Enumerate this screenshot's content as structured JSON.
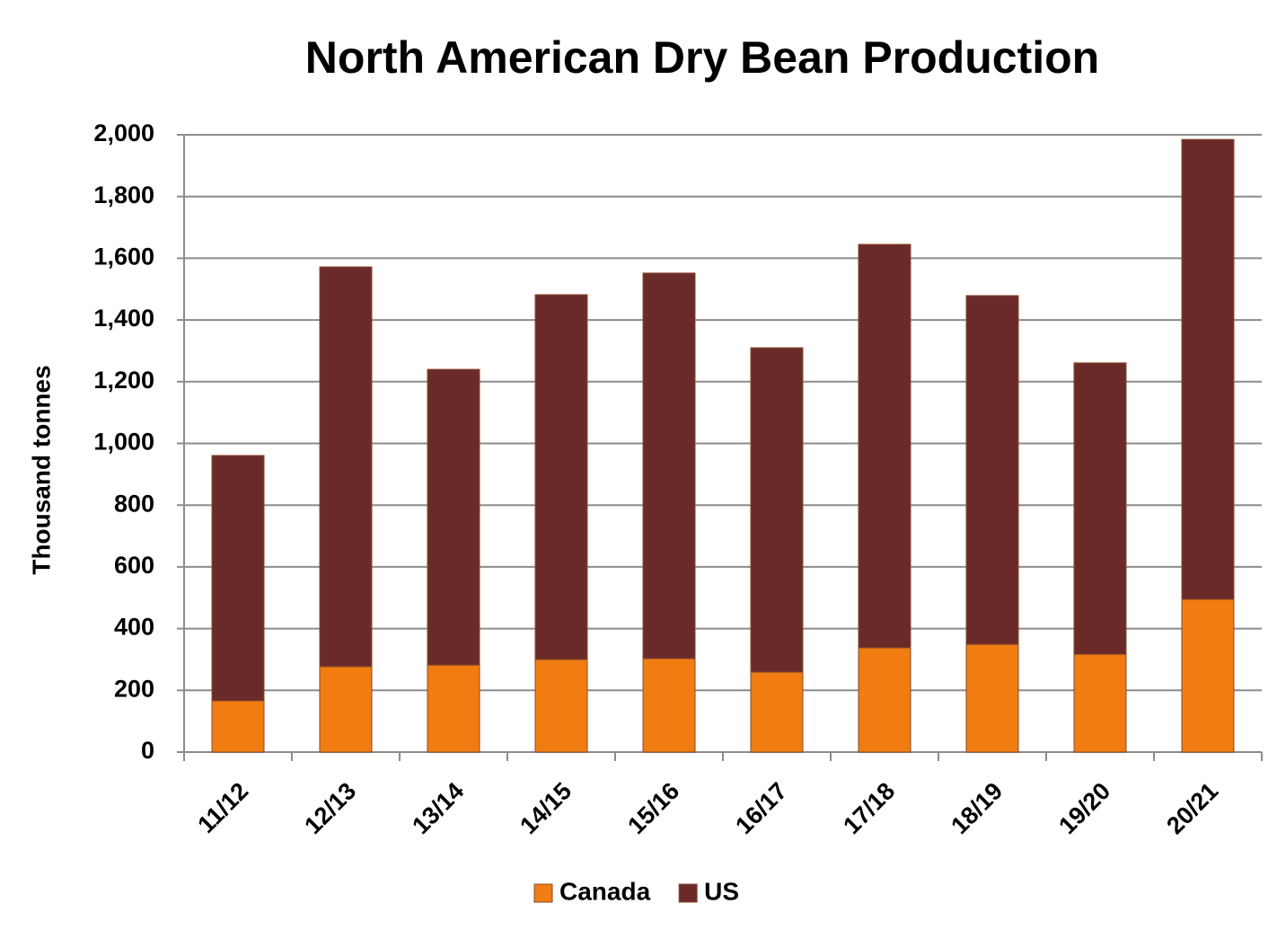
{
  "chart_data": {
    "type": "stacked_bar",
    "title": "North American Dry Bean Production",
    "y_label": "Thousand tonnes",
    "categories": [
      "11/12",
      "12/13",
      "13/14",
      "14/15",
      "15/16",
      "16/17",
      "17/18",
      "18/19",
      "19/20",
      "20/21"
    ],
    "series": [
      {
        "name": "Canada",
        "color": "#f07c12",
        "values": [
          166,
          277,
          282,
          300,
          303,
          259,
          338,
          349,
          317,
          495
        ]
      },
      {
        "name": "US",
        "color": "#6b2a2a",
        "values": [
          795,
          1295,
          958,
          1182,
          1249,
          1051,
          1307,
          1130,
          944,
          1490
        ]
      }
    ],
    "ylim": [
      0,
      2000
    ],
    "yticks": [
      0,
      200,
      400,
      600,
      800,
      {
        "value": 1000,
        "label": "1,000"
      },
      {
        "value": 1200,
        "label": "1,200"
      },
      {
        "value": 1400,
        "label": "1,400"
      },
      {
        "value": 1600,
        "label": "1,600"
      },
      {
        "value": 1800,
        "label": "1,800"
      },
      {
        "value": 2000,
        "label": "2,000"
      }
    ],
    "grid": true,
    "legend": "bottom"
  }
}
